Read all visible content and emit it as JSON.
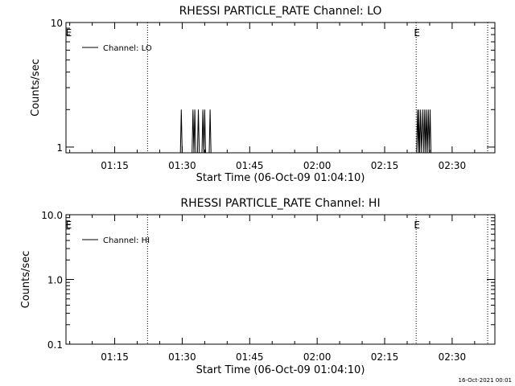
{
  "footer_timestamp": "16-Oct-2021 00:01",
  "chart_data": [
    {
      "type": "line",
      "title": "RHESSI PARTICLE_RATE Channel: LO",
      "xlabel": "Start Time (06-Oct-09 01:04:10)",
      "ylabel": "Counts/sec",
      "x_range_minutes": [
        64.17,
        159.5
      ],
      "x_ticks": [
        {
          "label": "01:15",
          "minutes": 75
        },
        {
          "label": "01:30",
          "minutes": 90
        },
        {
          "label": "01:45",
          "minutes": 105
        },
        {
          "label": "02:00",
          "minutes": 120
        },
        {
          "label": "02:15",
          "minutes": 135
        },
        {
          "label": "02:30",
          "minutes": 150
        }
      ],
      "y_scale": "log",
      "ylim": [
        0.9,
        10
      ],
      "y_ticks": [
        {
          "label": "10",
          "value": 10
        },
        {
          "label": "1",
          "value": 1
        }
      ],
      "legend": {
        "label": "Channel: LO",
        "placement": "top-left"
      },
      "markers": [
        {
          "label": "E",
          "minutes": 64.6,
          "line": false
        },
        {
          "label": "",
          "minutes": 82.3,
          "line": true
        },
        {
          "label": "E",
          "minutes": 142.0,
          "line": true
        },
        {
          "label": "",
          "minutes": 157.9,
          "line": true
        }
      ],
      "series": [
        {
          "name": "Channel: LO",
          "points": [
            {
              "x": 64.17,
              "y": 0.9
            },
            {
              "x": 89.6,
              "y": 0.9
            },
            {
              "x": 89.8,
              "y": 2
            },
            {
              "x": 90.0,
              "y": 0.9
            },
            {
              "x": 92.2,
              "y": 0.9
            },
            {
              "x": 92.4,
              "y": 2
            },
            {
              "x": 92.6,
              "y": 0.9
            },
            {
              "x": 92.8,
              "y": 2
            },
            {
              "x": 93.0,
              "y": 0.9
            },
            {
              "x": 93.4,
              "y": 0.9
            },
            {
              "x": 93.6,
              "y": 2
            },
            {
              "x": 93.8,
              "y": 0.9
            },
            {
              "x": 94.4,
              "y": 0.9
            },
            {
              "x": 94.6,
              "y": 2
            },
            {
              "x": 94.8,
              "y": 0.9
            },
            {
              "x": 95.0,
              "y": 2
            },
            {
              "x": 95.2,
              "y": 0.9
            },
            {
              "x": 96.0,
              "y": 0.9
            },
            {
              "x": 96.2,
              "y": 2
            },
            {
              "x": 96.4,
              "y": 0.9
            },
            {
              "x": 142.1,
              "y": 0.9
            },
            {
              "x": 142.3,
              "y": 2
            },
            {
              "x": 142.5,
              "y": 0.9
            },
            {
              "x": 142.6,
              "y": 2
            },
            {
              "x": 142.8,
              "y": 0.9
            },
            {
              "x": 143.0,
              "y": 2
            },
            {
              "x": 143.2,
              "y": 0.9
            },
            {
              "x": 143.5,
              "y": 2
            },
            {
              "x": 143.7,
              "y": 0.9
            },
            {
              "x": 143.9,
              "y": 2
            },
            {
              "x": 144.1,
              "y": 0.9
            },
            {
              "x": 144.3,
              "y": 2
            },
            {
              "x": 144.5,
              "y": 0.9
            },
            {
              "x": 144.7,
              "y": 2
            },
            {
              "x": 144.9,
              "y": 0.9
            },
            {
              "x": 145.1,
              "y": 2
            },
            {
              "x": 145.3,
              "y": 0.9
            },
            {
              "x": 159.5,
              "y": 0.9
            }
          ]
        }
      ]
    },
    {
      "type": "line",
      "title": "RHESSI PARTICLE_RATE Channel: HI",
      "xlabel": "Start Time (06-Oct-09 01:04:10)",
      "ylabel": "Counts/sec",
      "x_range_minutes": [
        64.17,
        159.5
      ],
      "x_ticks": [
        {
          "label": "01:15",
          "minutes": 75
        },
        {
          "label": "01:30",
          "minutes": 90
        },
        {
          "label": "01:45",
          "minutes": 105
        },
        {
          "label": "02:00",
          "minutes": 120
        },
        {
          "label": "02:15",
          "minutes": 135
        },
        {
          "label": "02:30",
          "minutes": 150
        }
      ],
      "y_scale": "log",
      "ylim": [
        0.1,
        10
      ],
      "y_ticks": [
        {
          "label": "10.0",
          "value": 10
        },
        {
          "label": "1.0",
          "value": 1
        },
        {
          "label": "0.1",
          "value": 0.1
        }
      ],
      "legend": {
        "label": "Channel: HI",
        "placement": "top-left"
      },
      "markers": [
        {
          "label": "E",
          "minutes": 64.6,
          "line": false
        },
        {
          "label": "",
          "minutes": 82.3,
          "line": true
        },
        {
          "label": "E",
          "minutes": 142.0,
          "line": true
        },
        {
          "label": "",
          "minutes": 157.9,
          "line": true
        }
      ],
      "series": [
        {
          "name": "Channel: HI",
          "points": []
        }
      ]
    }
  ]
}
